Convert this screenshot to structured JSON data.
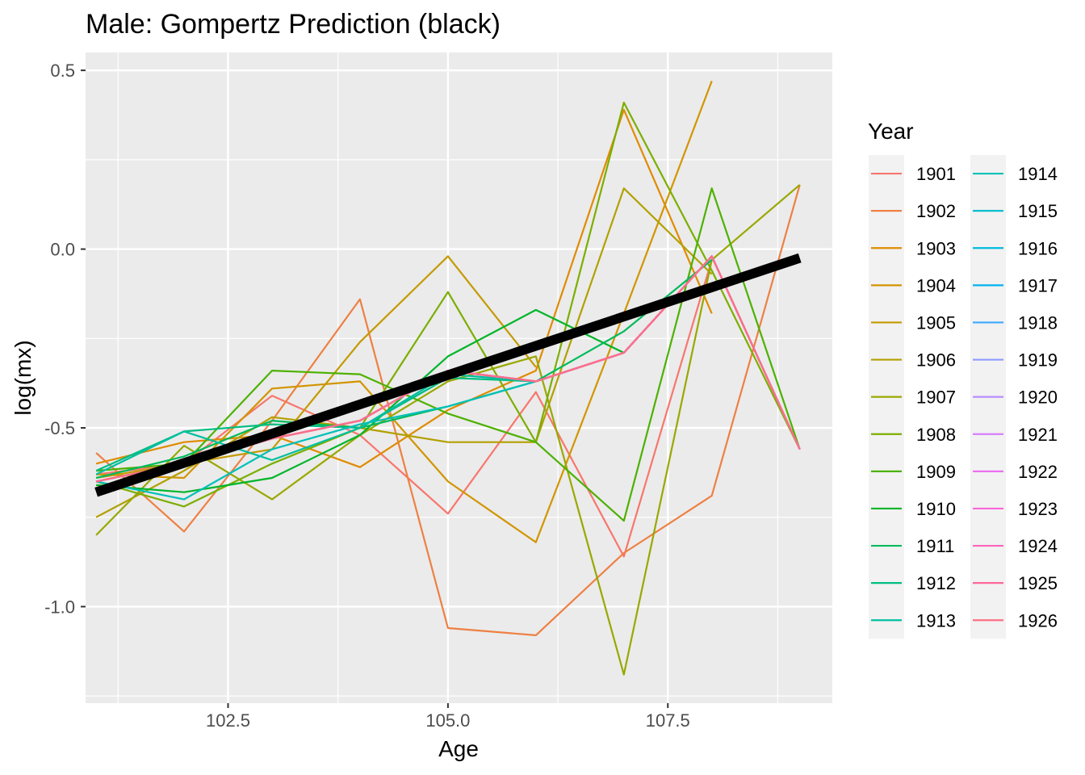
{
  "chart_data": {
    "type": "line",
    "title": "Male: Gompertz Prediction (black)",
    "xlabel": "Age",
    "ylabel": "log(mx)",
    "xlim": [
      100.88,
      109.37
    ],
    "ylim": [
      -1.27,
      0.55
    ],
    "x_ticks": [
      102.5,
      105.0,
      107.5
    ],
    "x_tick_labels": [
      "102.5",
      "105.0",
      "107.5"
    ],
    "x_minor_ticks": [
      101.25,
      103.75,
      106.25,
      108.75
    ],
    "y_ticks": [
      0.5,
      0.0,
      -0.5,
      -1.0
    ],
    "y_tick_labels": [
      "0.5",
      "0.0",
      "-0.5",
      "-1.0"
    ],
    "y_minor_ticks": [
      0.25,
      -0.25,
      -0.75,
      -1.25
    ],
    "grid": true,
    "panel_background": "#ebebeb",
    "legend": {
      "title": "Year",
      "position": "right",
      "columns": 2
    },
    "series": [
      {
        "name": "1901",
        "color": "#F8766D",
        "x": [
          101,
          102,
          103,
          104,
          105,
          106,
          107,
          108
        ],
        "y": [
          -0.63,
          -0.6,
          -0.41,
          -0.52,
          -0.74,
          -0.4,
          -0.86,
          -0.03
        ]
      },
      {
        "name": "1902",
        "color": "#EE8043",
        "x": [
          101,
          102,
          103,
          104,
          105,
          106,
          107,
          108,
          109
        ],
        "y": [
          -0.57,
          -0.79,
          -0.48,
          -0.14,
          -1.06,
          -1.08,
          -0.85,
          -0.69,
          0.18
        ]
      },
      {
        "name": "1903",
        "color": "#E08B00",
        "x": [
          101,
          102,
          103,
          104,
          105,
          106,
          107,
          108
        ],
        "y": [
          -0.6,
          -0.54,
          -0.52,
          -0.61,
          -0.45,
          -0.34,
          0.39,
          -0.18
        ]
      },
      {
        "name": "1904",
        "color": "#D29500",
        "x": [
          101,
          102,
          103,
          104,
          105,
          106,
          107,
          108
        ],
        "y": [
          -0.63,
          -0.64,
          -0.39,
          -0.37,
          -0.65,
          -0.82,
          -0.18,
          0.47
        ]
      },
      {
        "name": "1905",
        "color": "#C49A00",
        "x": [
          101,
          102,
          103,
          104,
          105,
          106
        ],
        "y": [
          -0.64,
          -0.6,
          -0.56,
          -0.26,
          -0.02,
          -0.33
        ]
      },
      {
        "name": "1906",
        "color": "#B2A000",
        "x": [
          101,
          102,
          103,
          104,
          105,
          106,
          107,
          108
        ],
        "y": [
          -0.75,
          -0.62,
          -0.47,
          -0.5,
          -0.54,
          -0.54,
          0.17,
          -0.07
        ]
      },
      {
        "name": "1907",
        "color": "#99A800",
        "x": [
          101,
          102,
          103,
          104,
          105,
          106,
          107,
          108,
          109
        ],
        "y": [
          -0.8,
          -0.55,
          -0.7,
          -0.52,
          -0.37,
          -0.3,
          -1.19,
          -0.03,
          0.18
        ]
      },
      {
        "name": "1908",
        "color": "#7CAE00",
        "x": [
          101,
          102,
          103,
          104,
          105,
          106,
          107,
          108,
          109
        ],
        "y": [
          -0.65,
          -0.72,
          -0.6,
          -0.5,
          -0.12,
          -0.54,
          0.41,
          -0.06,
          -0.56
        ]
      },
      {
        "name": "1909",
        "color": "#4DB100",
        "x": [
          101,
          102,
          103,
          104,
          105,
          106,
          107,
          108,
          109
        ],
        "y": [
          -0.62,
          -0.6,
          -0.34,
          -0.35,
          -0.46,
          -0.54,
          -0.76,
          0.17,
          -0.56
        ]
      },
      {
        "name": "1910",
        "color": "#00B52A",
        "x": [
          101,
          102,
          103,
          104,
          105,
          106,
          107
        ],
        "y": [
          -0.66,
          -0.68,
          -0.64,
          -0.52,
          -0.3,
          -0.17,
          -0.29
        ]
      },
      {
        "name": "1911",
        "color": "#00BA5C",
        "x": [
          101,
          102,
          103,
          104,
          105,
          106,
          107,
          108
        ],
        "y": [
          -0.64,
          -0.58,
          -0.48,
          -0.5,
          -0.44,
          -0.37,
          -0.23,
          -0.03
        ]
      },
      {
        "name": "1912",
        "color": "#00BD82",
        "x": [
          101,
          102,
          103,
          104,
          105,
          106,
          107
        ],
        "y": [
          -0.62,
          -0.51,
          -0.49,
          -0.5,
          -0.36,
          -0.37,
          -0.29
        ]
      },
      {
        "name": "1913",
        "color": "#00BFA0",
        "x": [
          101,
          102,
          103,
          104,
          105,
          106,
          107
        ],
        "y": [
          -0.63,
          -0.51,
          -0.59,
          -0.5,
          -0.35,
          -0.37,
          -0.29
        ]
      },
      {
        "name": "1914",
        "color": "#00C0B9",
        "x": [
          101,
          102,
          103,
          104,
          105,
          106,
          107
        ],
        "y": [
          -0.65,
          -0.7,
          -0.56,
          -0.49,
          -0.44,
          -0.37,
          -0.29
        ]
      },
      {
        "name": "1915",
        "color": "#00BECE",
        "x": [
          101,
          102,
          103,
          104,
          105,
          106,
          107,
          108,
          109
        ],
        "y": [
          -0.65,
          -0.6,
          -0.53,
          -0.48,
          -0.34,
          -0.37,
          -0.29,
          -0.02,
          -0.56
        ]
      },
      {
        "name": "1916",
        "color": "#00BADF",
        "x": [
          101,
          102,
          103,
          104,
          105,
          106,
          107,
          108,
          109
        ],
        "y": [
          -0.65,
          -0.6,
          -0.53,
          -0.48,
          -0.34,
          -0.37,
          -0.29,
          -0.02,
          -0.56
        ]
      },
      {
        "name": "1917",
        "color": "#00B3EE",
        "x": [
          101,
          102,
          103,
          104,
          105,
          106,
          107,
          108,
          109
        ],
        "y": [
          -0.65,
          -0.6,
          -0.53,
          -0.48,
          -0.34,
          -0.37,
          -0.29,
          -0.02,
          -0.56
        ]
      },
      {
        "name": "1918",
        "color": "#3DA8FF",
        "x": [
          101,
          102,
          103,
          104,
          105,
          106,
          107,
          108,
          109
        ],
        "y": [
          -0.65,
          -0.6,
          -0.53,
          -0.48,
          -0.34,
          -0.37,
          -0.29,
          -0.02,
          -0.56
        ]
      },
      {
        "name": "1919",
        "color": "#8F9BFF",
        "x": [
          101,
          102,
          103,
          104,
          105,
          106,
          107,
          108,
          109
        ],
        "y": [
          -0.65,
          -0.6,
          -0.53,
          -0.48,
          -0.34,
          -0.37,
          -0.29,
          -0.02,
          -0.56
        ]
      },
      {
        "name": "1920",
        "color": "#B98DFF",
        "x": [
          101,
          102,
          103,
          104,
          105,
          106,
          107,
          108,
          109
        ],
        "y": [
          -0.65,
          -0.6,
          -0.53,
          -0.48,
          -0.34,
          -0.37,
          -0.29,
          -0.02,
          -0.56
        ]
      },
      {
        "name": "1921",
        "color": "#D67FFF",
        "x": [
          101,
          102,
          103,
          104,
          105,
          106,
          107,
          108,
          109
        ],
        "y": [
          -0.65,
          -0.6,
          -0.53,
          -0.48,
          -0.34,
          -0.37,
          -0.29,
          -0.02,
          -0.56
        ]
      },
      {
        "name": "1922",
        "color": "#EB71F0",
        "x": [
          101,
          102,
          103,
          104,
          105,
          106,
          107,
          108,
          109
        ],
        "y": [
          -0.65,
          -0.6,
          -0.53,
          -0.48,
          -0.34,
          -0.37,
          -0.29,
          -0.02,
          -0.56
        ]
      },
      {
        "name": "1923",
        "color": "#F967D8",
        "x": [
          101,
          102,
          103,
          104,
          105,
          106,
          107,
          108,
          109
        ],
        "y": [
          -0.65,
          -0.6,
          -0.53,
          -0.48,
          -0.34,
          -0.37,
          -0.29,
          -0.02,
          -0.56
        ]
      },
      {
        "name": "1924",
        "color": "#FF63BB",
        "x": [
          101,
          102,
          103,
          104,
          105,
          106,
          107,
          108,
          109
        ],
        "y": [
          -0.65,
          -0.6,
          -0.53,
          -0.48,
          -0.34,
          -0.37,
          -0.29,
          -0.02,
          -0.56
        ]
      },
      {
        "name": "1925",
        "color": "#FF6799",
        "x": [
          101,
          102,
          103,
          104,
          105,
          106,
          107,
          108,
          109
        ],
        "y": [
          -0.65,
          -0.6,
          -0.53,
          -0.48,
          -0.34,
          -0.37,
          -0.29,
          -0.02,
          -0.56
        ]
      },
      {
        "name": "1926",
        "color": "#FD6F86",
        "x": [
          101,
          102,
          103,
          104,
          105,
          106,
          107,
          108,
          109
        ],
        "y": [
          -0.65,
          -0.6,
          -0.53,
          -0.48,
          -0.34,
          -0.37,
          -0.29,
          -0.02,
          -0.56
        ]
      }
    ],
    "prediction": {
      "color": "#000000",
      "x": [
        101,
        109
      ],
      "y": [
        -0.68,
        -0.025
      ]
    }
  }
}
